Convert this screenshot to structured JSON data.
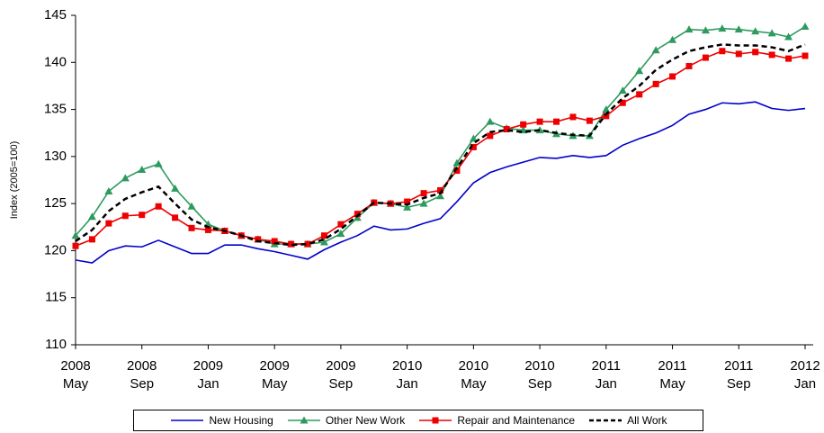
{
  "chart_data": {
    "type": "line",
    "y_label": "Index (2005=100)",
    "categories": [
      "2008\nMay",
      null,
      null,
      null,
      "2008\nSep",
      null,
      null,
      null,
      "2009\nJan",
      null,
      null,
      null,
      "2009\nMay",
      null,
      null,
      null,
      "2009\nSep",
      null,
      null,
      null,
      "2010\nJan",
      null,
      null,
      null,
      "2010\nMay",
      null,
      null,
      null,
      "2010\nSep",
      null,
      null,
      null,
      "2011\nJan",
      null,
      null,
      null,
      "2011\nMay",
      null,
      null,
      null,
      "2011\nSep",
      null,
      null,
      null,
      "2012\nJan"
    ],
    "ylim": [
      110,
      145
    ],
    "yticks": [
      110,
      115,
      120,
      125,
      130,
      135,
      140,
      145
    ],
    "legend": "bottom",
    "series": [
      {
        "name": "New Housing",
        "color": "#0000cc",
        "values": [
          119.0,
          118.7,
          120.0,
          120.5,
          120.4,
          121.1,
          120.4,
          119.7,
          119.7,
          120.6,
          120.6,
          120.2,
          119.9,
          119.5,
          119.1,
          120.1,
          120.9,
          121.6,
          122.6,
          122.2,
          122.3,
          122.9,
          123.4,
          125.2,
          127.2,
          128.3,
          128.9,
          129.4,
          129.9,
          129.8,
          130.1,
          129.9,
          130.1,
          131.2,
          131.9,
          132.5,
          133.3,
          134.5,
          135.0,
          135.7,
          135.6,
          135.8,
          135.1,
          134.9,
          135.1
        ]
      },
      {
        "name": "Other New Work",
        "color": "#2e9a5e",
        "marker": "triangle",
        "values": [
          121.6,
          123.6,
          126.3,
          127.7,
          128.6,
          129.2,
          126.6,
          124.7,
          122.8,
          122.1,
          121.6,
          121.2,
          120.7,
          120.7,
          120.7,
          120.9,
          121.8,
          123.5,
          125.1,
          125.0,
          124.6,
          125.0,
          125.8,
          129.3,
          131.9,
          133.7,
          133.0,
          132.8,
          132.8,
          132.4,
          132.2,
          132.2,
          135.0,
          137.0,
          139.1,
          141.3,
          142.4,
          143.5,
          143.4,
          143.6,
          143.5,
          143.3,
          143.1,
          142.7,
          143.8
        ]
      },
      {
        "name": "Repair and Maintenance",
        "color": "#ee0000",
        "marker": "square",
        "values": [
          120.5,
          121.2,
          122.9,
          123.7,
          123.8,
          124.7,
          123.5,
          122.4,
          122.2,
          122.1,
          121.6,
          121.2,
          121.0,
          120.7,
          120.7,
          121.6,
          122.8,
          123.9,
          125.1,
          125.0,
          125.2,
          126.1,
          126.4,
          128.5,
          131.0,
          132.2,
          132.9,
          133.4,
          133.7,
          133.7,
          134.2,
          133.8,
          134.3,
          135.7,
          136.6,
          137.7,
          138.5,
          139.6,
          140.5,
          141.2,
          140.9,
          141.1,
          140.8,
          140.4,
          140.7
        ]
      },
      {
        "name": "All Work",
        "color": "#000000",
        "line_style": "dashed",
        "values": [
          121.0,
          122.2,
          124.2,
          125.5,
          126.2,
          126.8,
          125.0,
          123.3,
          122.5,
          122.1,
          121.6,
          121.0,
          120.8,
          120.6,
          120.7,
          121.2,
          122.3,
          123.7,
          125.1,
          125.0,
          124.9,
          125.6,
          126.1,
          128.8,
          131.4,
          132.6,
          132.8,
          132.6,
          132.8,
          132.5,
          132.3,
          132.2,
          134.5,
          136.2,
          137.5,
          139.2,
          140.3,
          141.2,
          141.6,
          141.9,
          141.8,
          141.8,
          141.6,
          141.2,
          141.9
        ]
      }
    ]
  }
}
